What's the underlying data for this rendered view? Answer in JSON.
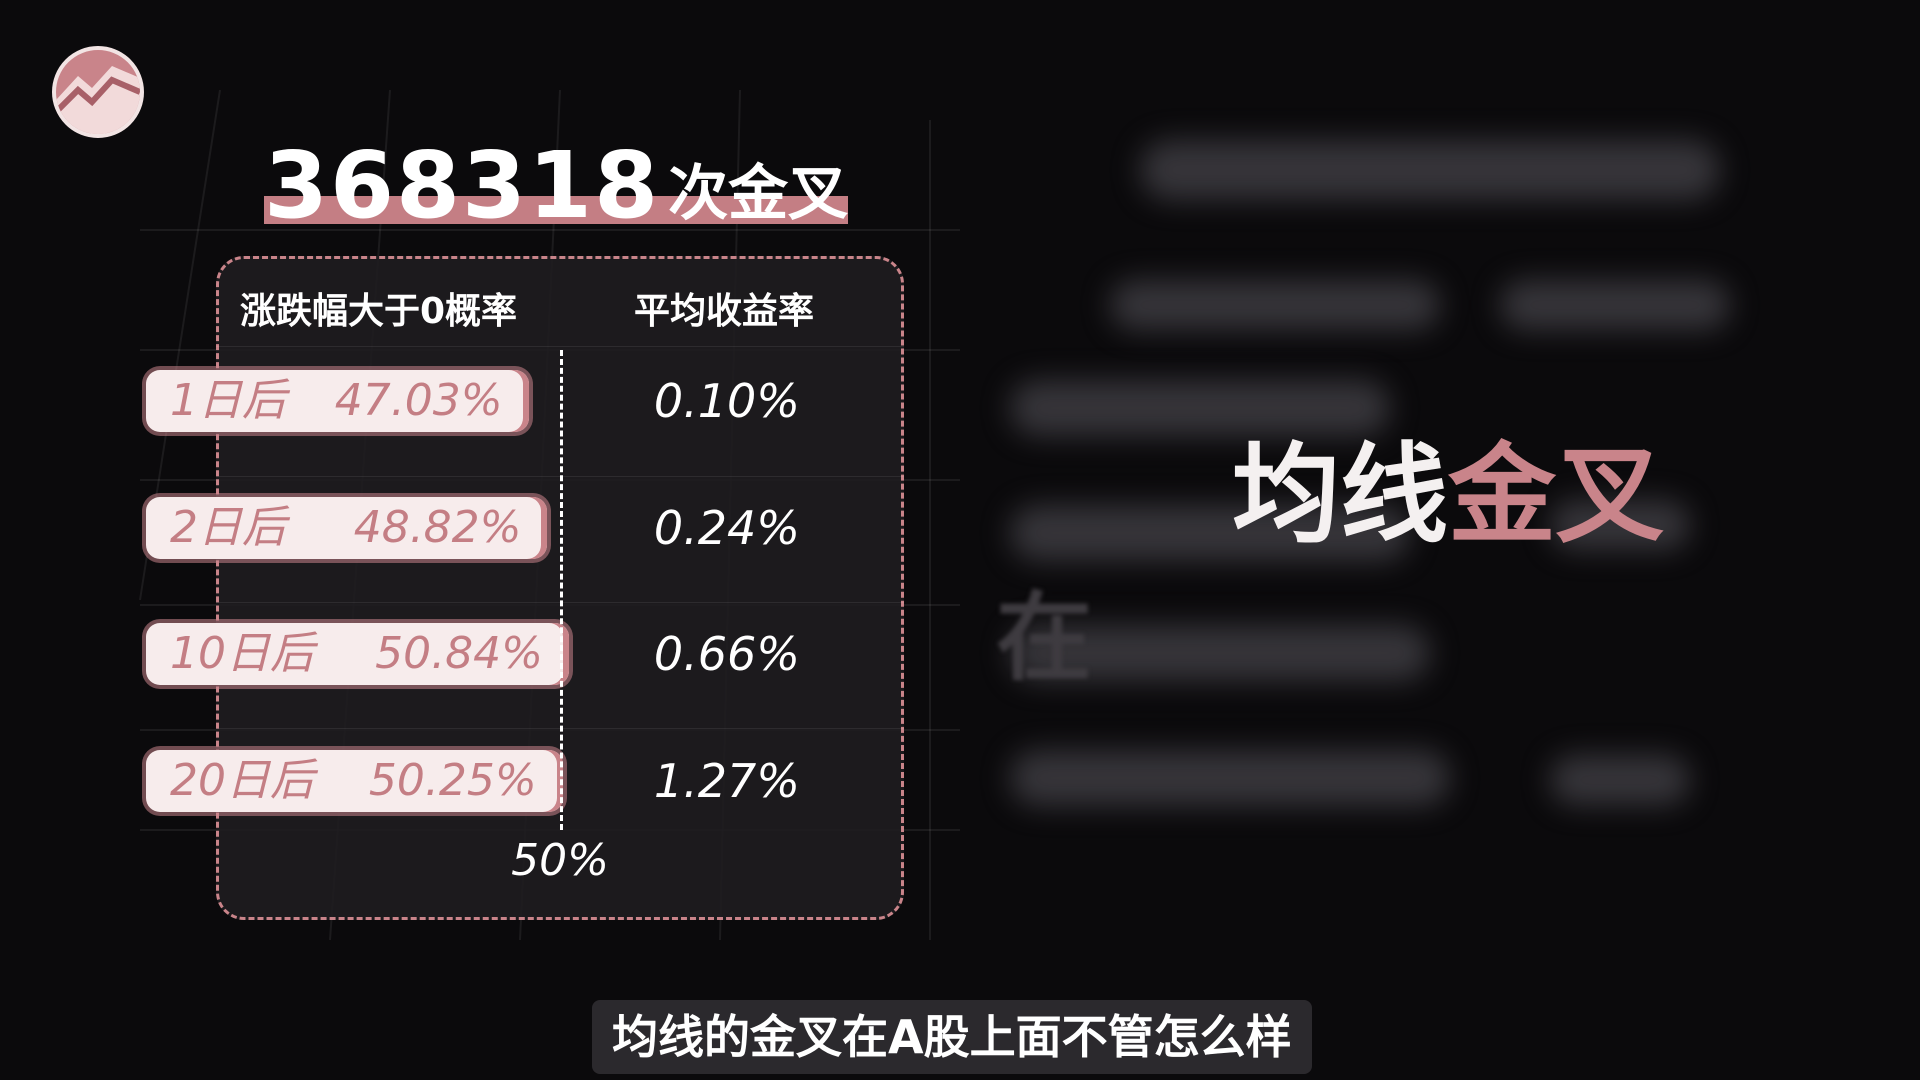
{
  "headline": {
    "count": "368318",
    "unit": "次金叉"
  },
  "chart_data": {
    "type": "table",
    "columns": [
      "涨跌幅大于0概率",
      "平均收益率"
    ],
    "threshold_label": "50%",
    "threshold": 50,
    "rows": [
      {
        "label": "1日后",
        "prob_text": "47.03%",
        "prob": 47.03,
        "avg_text": "0.10%"
      },
      {
        "label": "2日后",
        "prob_text": "48.82%",
        "prob": 48.82,
        "avg_text": "0.24%"
      },
      {
        "label": "10日后",
        "prob_text": "50.84%",
        "prob": 50.84,
        "avg_text": "0.66%"
      },
      {
        "label": "20日后",
        "prob_text": "50.25%",
        "prob": 50.25,
        "avg_text": "1.27%"
      }
    ]
  },
  "side_title": {
    "white_part": "均线",
    "pink_part": "金叉"
  },
  "blurred_char": "在",
  "subtitle": "均线的金叉在A股上面不管怎么样",
  "colors": {
    "accent": "#c9848a",
    "pill": "#f7ecec",
    "background": "#0b0a0c"
  },
  "logo_icon": "trend-logo-icon"
}
